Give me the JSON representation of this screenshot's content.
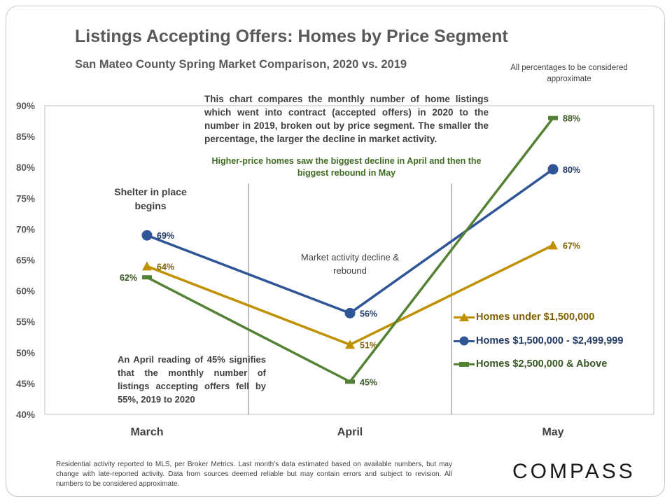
{
  "texts": {
    "title": "Listings Accepting Offers: Homes by Price Segment",
    "subtitle": "San Mateo County Spring Market Comparison,  2020 vs. 2019",
    "approx_note": "All percentages to be considered approximate",
    "explanation": "This chart compares the monthly number of home listings which went into contract (accepted offers) in 2020 to the number in 2019, broken out by price segment. The smaller the percentage, the larger the decline in market activity.",
    "green_note": "Higher-price homes saw the biggest decline in April and then the biggest rebound in May",
    "shelter_note": "Shelter in place begins",
    "market_note": "Market activity decline & rebound",
    "april_note": "An April reading of 45% signifies that the monthly number of listings accepting offers fell by 55%, 2019 to 2020",
    "footnote": "Residential activity reported to MLS, per Broker Metrics. Last month’s data estimated based on available numbers, but may change with late-reported activity. Data from sources deemed reliable but may contain errors and subject to revision. All numbers to be considered approximate.",
    "brand": "COMPASS"
  },
  "chart_data": {
    "type": "line",
    "title": "Listings Accepting Offers: Homes by Price Segment",
    "subtitle": "San Mateo County Spring Market Comparison,  2020 vs. 2019",
    "categories": [
      "March",
      "April",
      "May"
    ],
    "y_ticks": [
      "90%",
      "85%",
      "80%",
      "75%",
      "70%",
      "65%",
      "60%",
      "55%",
      "50%",
      "45%",
      "40%"
    ],
    "ylim": [
      40,
      90
    ],
    "grid": false,
    "legend_position": "right",
    "series": [
      {
        "name": "Homes under $1,500,000",
        "marker": "triangle",
        "color": "#bf9000",
        "label_color": "#7f6000",
        "values": [
          64,
          51.3,
          67.4
        ],
        "labels": [
          "64%",
          "51%",
          "67%"
        ]
      },
      {
        "name": "Homes $1,500,000 - $2,499,999",
        "marker": "circle",
        "color": "#2f5597",
        "label_color": "#203864",
        "values": [
          69,
          56.4,
          79.7
        ],
        "labels": [
          "69%",
          "56%",
          "80%"
        ]
      },
      {
        "name": "Homes $2,500,000 & Above",
        "marker": "dash",
        "color": "#548235",
        "label_color": "#385723",
        "values": [
          62.2,
          45.3,
          88
        ],
        "labels": [
          "62%",
          "45%",
          "88%"
        ]
      }
    ]
  }
}
